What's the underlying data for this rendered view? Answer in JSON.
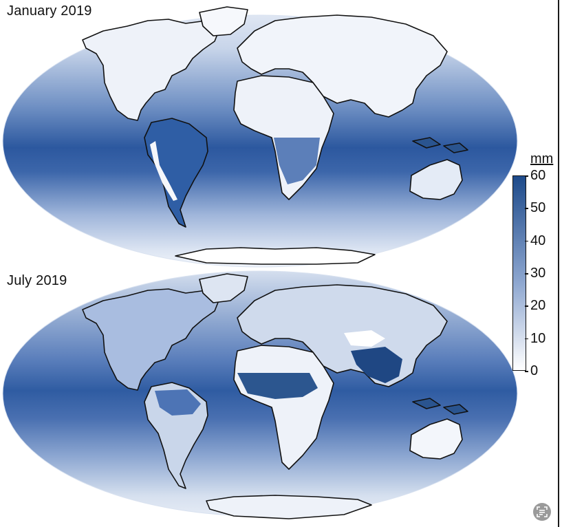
{
  "panels": [
    {
      "title": "January 2019"
    },
    {
      "title": "July 2019"
    }
  ],
  "colorbar": {
    "unit": "mm",
    "ticks": [
      "60",
      "50",
      "40",
      "30",
      "20",
      "10",
      "0"
    ],
    "min": 0,
    "max": 60,
    "colors": {
      "low": "#ffffff",
      "mid": "#8ea7d0",
      "high": "#1d4a8a"
    }
  },
  "map_colors": {
    "ocean_wet": "#2d5aa0",
    "ocean_mid": "#6f90c4",
    "ocean_dry": "#c9d6ea",
    "land_dry": "#f2f5fa",
    "coastline": "#111111"
  },
  "icons": {
    "corner_button": "text-scan-icon"
  }
}
